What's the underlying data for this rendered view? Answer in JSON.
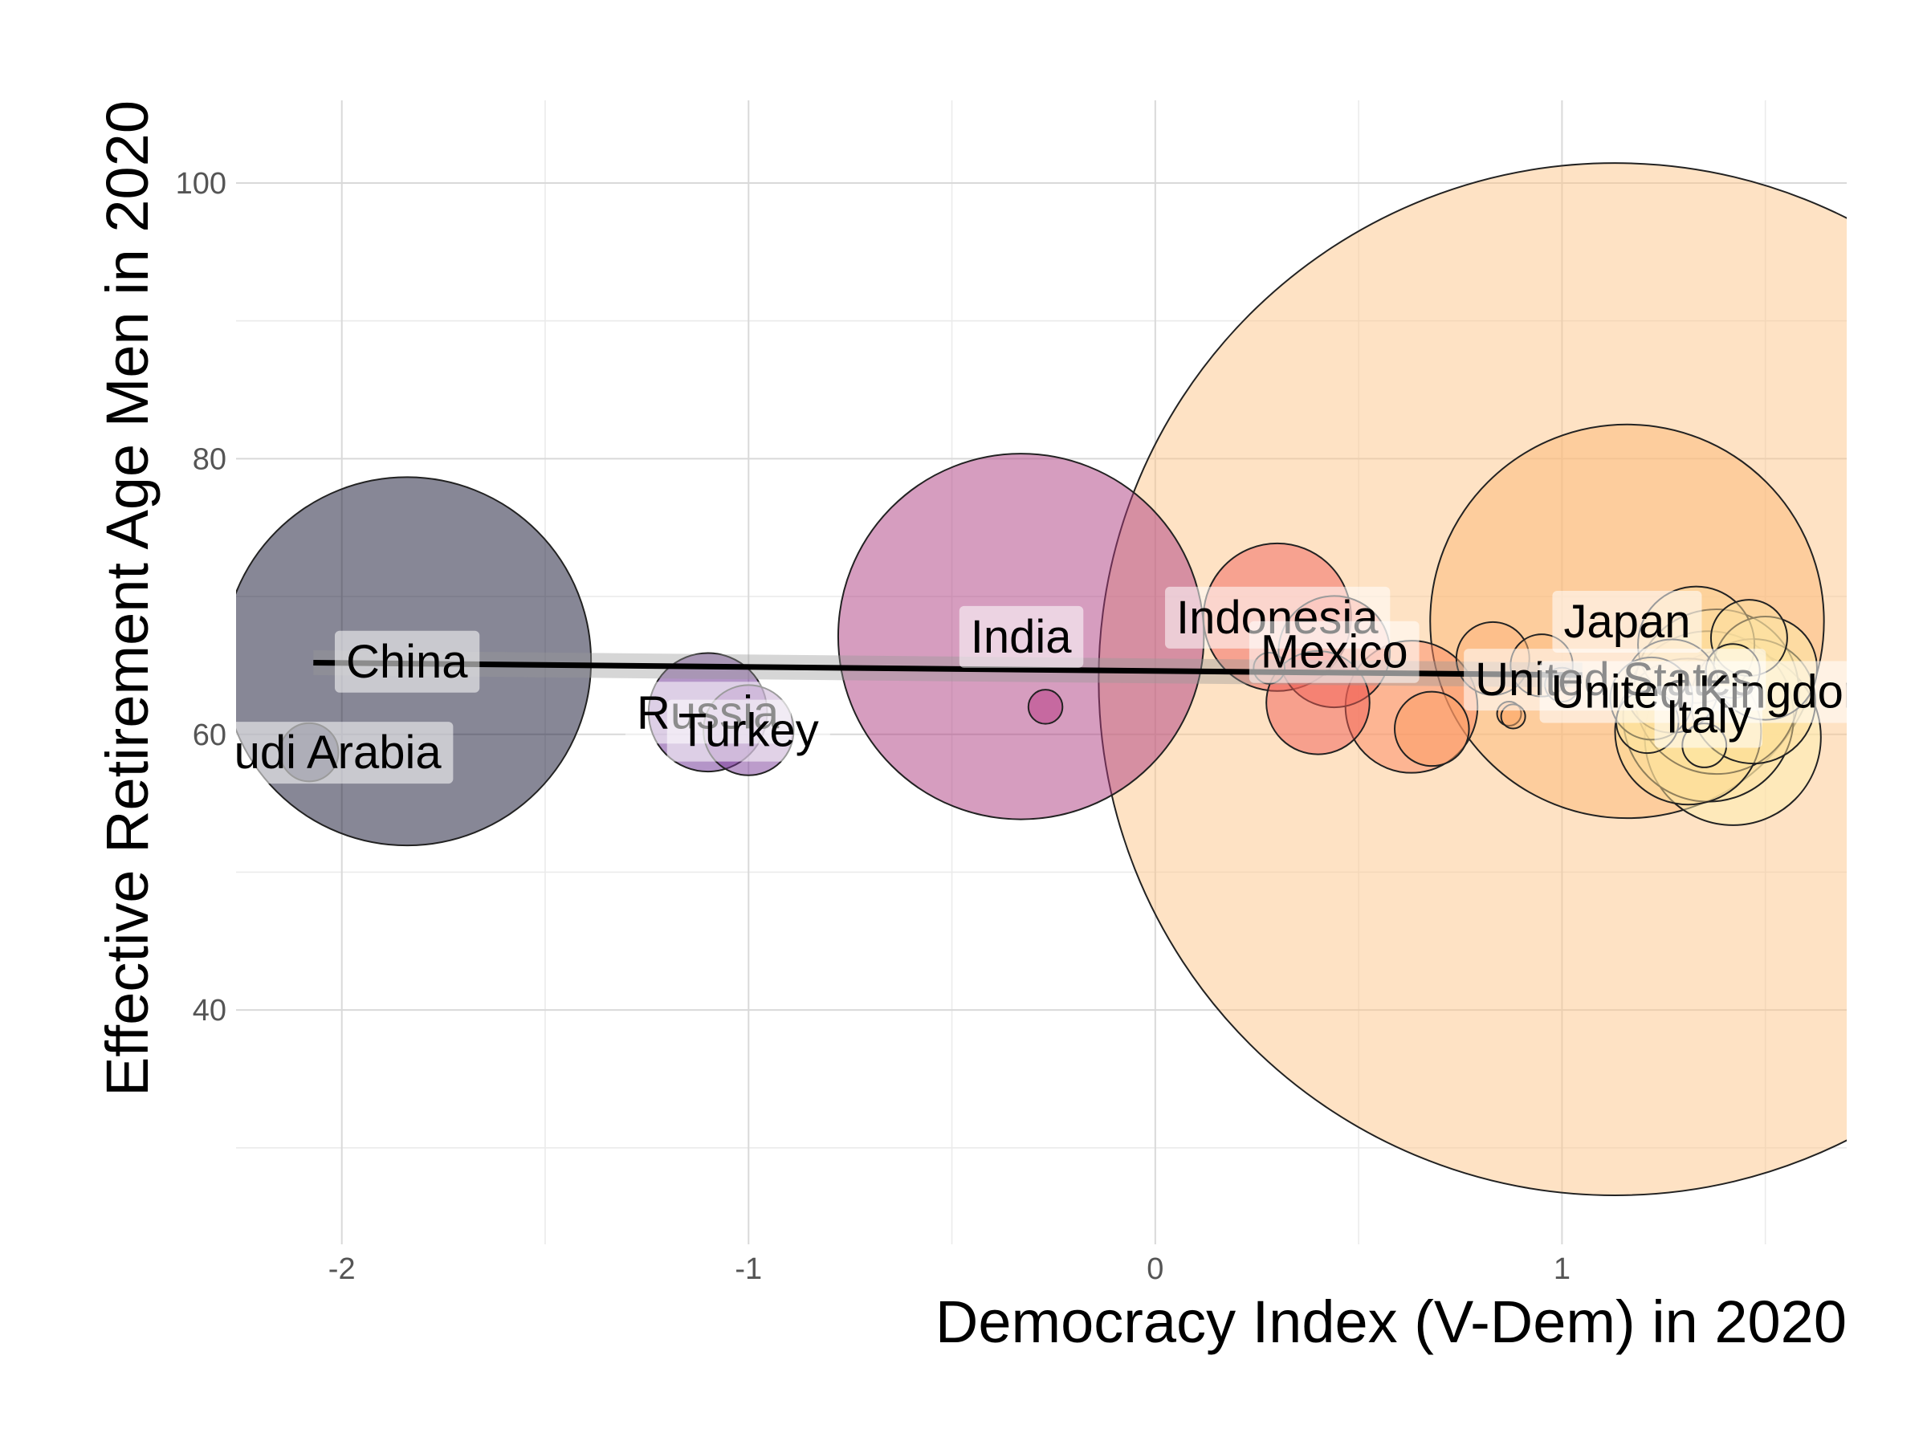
{
  "chart_data": {
    "type": "scatter",
    "title": "",
    "xlabel": "Democracy Index (V-Dem) in 2020",
    "ylabel": "Effective Retirement Age Men in 2020",
    "xlim": [
      -2.26,
      1.7
    ],
    "ylim": [
      23,
      106
    ],
    "x_ticks": [
      {
        "value": -2,
        "label": "-2"
      },
      {
        "value": -1,
        "label": "-1"
      },
      {
        "value": 0,
        "label": "0"
      },
      {
        "value": 1,
        "label": "1"
      }
    ],
    "x_minor": [
      -1.5,
      -0.5,
      0.5,
      1.5
    ],
    "y_ticks": [
      {
        "value": 40,
        "label": "40"
      },
      {
        "value": 60,
        "label": "60"
      },
      {
        "value": 80,
        "label": "80"
      },
      {
        "value": 100,
        "label": "100"
      }
    ],
    "y_minor": [
      30,
      50,
      70,
      90
    ],
    "grid": true,
    "legend": "none",
    "size_encoding": "population",
    "trend": {
      "x0": -2.07,
      "y0": 65.2,
      "x1": 1.05,
      "y1": 64.3,
      "ci_halfwidth": 0.9
    },
    "points": [
      {
        "x": -1.84,
        "y": 65.3,
        "size": 1400,
        "color": "#0f0f2e",
        "label": "China"
      },
      {
        "x": -2.08,
        "y": 58.7,
        "size": 35,
        "color": "#121230",
        "label": "Saudi Arabia"
      },
      {
        "x": -1.1,
        "y": 61.6,
        "size": 145,
        "color": "#6a2c91",
        "label": "Russia"
      },
      {
        "x": -1.0,
        "y": 60.3,
        "size": 84,
        "color": "#7a3a98",
        "label": "Turkey"
      },
      {
        "x": -0.33,
        "y": 67.1,
        "size": 1380,
        "color": "#ae3c7f",
        "label": "India"
      },
      {
        "x": -0.27,
        "y": 62.0,
        "size": 12,
        "color": "#b53581",
        "label": ""
      },
      {
        "x": 0.3,
        "y": 68.5,
        "size": 225,
        "color": "#f0615c",
        "label": "Indonesia"
      },
      {
        "x": 0.44,
        "y": 66.0,
        "size": 128,
        "color": "#f56b5c",
        "label": "Mexico"
      },
      {
        "x": 0.4,
        "y": 62.3,
        "size": 110,
        "color": "#f05e55",
        "label": ""
      },
      {
        "x": 0.63,
        "y": 62.0,
        "size": 180,
        "color": "#fb8761",
        "label": ""
      },
      {
        "x": 0.68,
        "y": 60.4,
        "size": 57,
        "color": "#fc9b62",
        "label": ""
      },
      {
        "x": 0.28,
        "y": 64.8,
        "size": 10,
        "color": "#f5775e",
        "label": ""
      },
      {
        "x": 1.13,
        "y": 64.0,
        "size": 11000,
        "color": "#fdc68a",
        "label": "United States"
      },
      {
        "x": 1.16,
        "y": 68.2,
        "size": 1600,
        "color": "#fcb876",
        "label": "Japan"
      },
      {
        "x": 1.38,
        "y": 63.1,
        "size": 280,
        "color": "#fde5a0",
        "label": "United Kingdom"
      },
      {
        "x": 1.36,
        "y": 61.3,
        "size": 300,
        "color": "#fde2a0",
        "label": "Italy"
      },
      {
        "x": 1.31,
        "y": 60.2,
        "size": 220,
        "color": "#fddd96",
        "label": ""
      },
      {
        "x": 1.42,
        "y": 59.8,
        "size": 320,
        "color": "#fdf0b0",
        "label": ""
      },
      {
        "x": 1.47,
        "y": 62.4,
        "size": 160,
        "color": "#fde09a",
        "label": ""
      },
      {
        "x": 1.5,
        "y": 64.8,
        "size": 110,
        "color": "#fdeaa8",
        "label": ""
      },
      {
        "x": 1.46,
        "y": 67.0,
        "size": 60,
        "color": "#fde0a0",
        "label": ""
      },
      {
        "x": 1.33,
        "y": 66.5,
        "size": 140,
        "color": "#fdd79a",
        "label": ""
      },
      {
        "x": 1.27,
        "y": 63.5,
        "size": 90,
        "color": "#fdd08f",
        "label": ""
      },
      {
        "x": 1.22,
        "y": 62.6,
        "size": 70,
        "color": "#fdd595",
        "label": ""
      },
      {
        "x": 1.21,
        "y": 60.9,
        "size": 40,
        "color": "#fde5a0",
        "label": ""
      },
      {
        "x": 1.35,
        "y": 59.2,
        "size": 20,
        "color": "#fde8a6",
        "label": ""
      },
      {
        "x": 1.42,
        "y": 64.6,
        "size": 30,
        "color": "#fdeaa8",
        "label": ""
      },
      {
        "x": 0.83,
        "y": 65.5,
        "size": 55,
        "color": "#fdb27a",
        "label": ""
      },
      {
        "x": 0.95,
        "y": 65.0,
        "size": 40,
        "color": "#fdbb80",
        "label": ""
      },
      {
        "x": 1.0,
        "y": 63.6,
        "size": 12,
        "color": "#fdb06f",
        "label": ""
      },
      {
        "x": 0.87,
        "y": 61.5,
        "size": 6,
        "color": "#fda25f",
        "label": ""
      },
      {
        "x": 0.88,
        "y": 61.3,
        "size": 6,
        "color": "#fdb06f",
        "label": ""
      }
    ]
  }
}
